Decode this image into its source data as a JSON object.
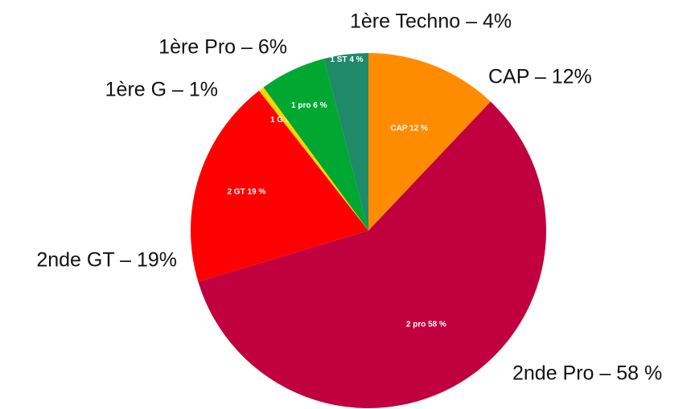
{
  "chart_data": {
    "type": "pie",
    "categories": [
      "CAP – 12%",
      "2nde Pro – 58 %",
      "2nde GT – 19%",
      "1ère G – 1%",
      "1ère Pro – 6%",
      "1ère Techno – 4%"
    ],
    "values": [
      12,
      58,
      19,
      0.5,
      6,
      4
    ],
    "value_labels": [
      "CAP 12 %",
      "2 pro 58 %",
      "2 GT 19 %",
      "1 G 0 %",
      "1 pro 6 %",
      "1 ST 4 %"
    ],
    "colors": [
      "#ff8c00",
      "#c0003f",
      "#ff0000",
      "#ffd700",
      "#00a832",
      "#1e8a6a"
    ]
  }
}
